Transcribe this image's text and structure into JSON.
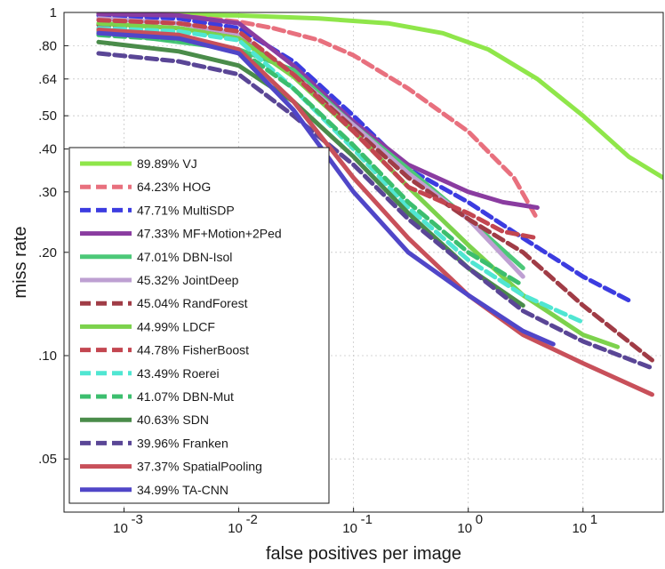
{
  "chart_data": {
    "type": "line",
    "title": "",
    "xlabel": "false positives per image",
    "ylabel": "miss rate",
    "xscale": "log",
    "yscale": "log",
    "xlim": [
      0.0003,
      50
    ],
    "ylim": [
      0.035,
      1
    ],
    "grid": true,
    "legend_position": "bottom-left",
    "x_ticks": [
      {
        "value": 0.001,
        "base": "10",
        "exp": "-3"
      },
      {
        "value": 0.01,
        "base": "10",
        "exp": "-2"
      },
      {
        "value": 0.1,
        "base": "10",
        "exp": "-1"
      },
      {
        "value": 1,
        "base": "10",
        "exp": "0"
      },
      {
        "value": 10,
        "base": "10",
        "exp": "1"
      }
    ],
    "y_ticks": [
      {
        "value": 1,
        "label": "1"
      },
      {
        "value": 0.8,
        "label": ".80"
      },
      {
        "value": 0.64,
        "label": ".64"
      },
      {
        "value": 0.5,
        "label": ".50"
      },
      {
        "value": 0.4,
        "label": ".40"
      },
      {
        "value": 0.3,
        "label": ".30"
      },
      {
        "value": 0.2,
        "label": ".20"
      },
      {
        "value": 0.1,
        "label": ".10"
      },
      {
        "value": 0.05,
        "label": ".05"
      }
    ],
    "series": [
      {
        "name": "89.89% VJ",
        "color": "#8fe64a",
        "dashed": false,
        "x": [
          0.0006,
          0.01,
          0.05,
          0.2,
          0.6,
          1.5,
          4,
          10,
          25,
          50
        ],
        "y": [
          0.99,
          0.98,
          0.96,
          0.93,
          0.87,
          0.78,
          0.64,
          0.5,
          0.38,
          0.33
        ]
      },
      {
        "name": "64.23% HOG",
        "color": "#e8707e",
        "dashed": true,
        "x": [
          0.0006,
          0.003,
          0.01,
          0.02,
          0.05,
          0.1,
          0.3,
          1,
          2.5,
          4
        ],
        "y": [
          0.99,
          0.98,
          0.94,
          0.9,
          0.83,
          0.75,
          0.6,
          0.45,
          0.33,
          0.25
        ]
      },
      {
        "name": "47.71% MultiSDP",
        "color": "#3c3ce0",
        "dashed": true,
        "x": [
          0.0006,
          0.003,
          0.01,
          0.03,
          0.1,
          0.3,
          1,
          3,
          10,
          25
        ],
        "y": [
          0.98,
          0.96,
          0.9,
          0.72,
          0.5,
          0.35,
          0.28,
          0.22,
          0.17,
          0.145
        ]
      },
      {
        "name": "47.33% MF+Motion+2Ped",
        "color": "#8a3ca0",
        "dashed": false,
        "x": [
          0.0006,
          0.003,
          0.01,
          0.03,
          0.1,
          0.3,
          1,
          2,
          4
        ],
        "y": [
          0.99,
          0.98,
          0.93,
          0.7,
          0.48,
          0.36,
          0.3,
          0.28,
          0.27
        ]
      },
      {
        "name": "47.01% DBN-Isol",
        "color": "#4cc878",
        "dashed": false,
        "x": [
          0.0006,
          0.003,
          0.01,
          0.03,
          0.1,
          0.3,
          1,
          3
        ],
        "y": [
          0.88,
          0.82,
          0.78,
          0.68,
          0.47,
          0.35,
          0.25,
          0.18
        ]
      },
      {
        "name": "45.32% JointDeep",
        "color": "#bea0d2",
        "dashed": false,
        "x": [
          0.0006,
          0.003,
          0.01,
          0.03,
          0.1,
          0.3,
          1,
          3
        ],
        "y": [
          0.96,
          0.93,
          0.86,
          0.66,
          0.47,
          0.34,
          0.25,
          0.17
        ]
      },
      {
        "name": "45.04% RandForest",
        "color": "#a03c46",
        "dashed": true,
        "x": [
          0.0006,
          0.003,
          0.01,
          0.03,
          0.1,
          0.3,
          1,
          3,
          10,
          40
        ],
        "y": [
          0.92,
          0.9,
          0.84,
          0.66,
          0.46,
          0.33,
          0.25,
          0.2,
          0.14,
          0.097
        ]
      },
      {
        "name": "44.99% LDCF",
        "color": "#7cd24c",
        "dashed": false,
        "x": [
          0.0006,
          0.003,
          0.01,
          0.03,
          0.1,
          0.3,
          1,
          3,
          10,
          20
        ],
        "y": [
          0.93,
          0.9,
          0.84,
          0.65,
          0.45,
          0.31,
          0.21,
          0.15,
          0.115,
          0.106
        ]
      },
      {
        "name": "44.78% FisherBoost",
        "color": "#c34650",
        "dashed": true,
        "x": [
          0.0006,
          0.003,
          0.01,
          0.03,
          0.1,
          0.3,
          1,
          2,
          4
        ],
        "y": [
          0.95,
          0.93,
          0.88,
          0.66,
          0.45,
          0.31,
          0.26,
          0.23,
          0.22
        ]
      },
      {
        "name": "43.49% Roerei",
        "color": "#50e6d2",
        "dashed": true,
        "x": [
          0.0006,
          0.003,
          0.01,
          0.03,
          0.1,
          0.3,
          1,
          3,
          10
        ],
        "y": [
          0.9,
          0.88,
          0.83,
          0.6,
          0.4,
          0.27,
          0.19,
          0.15,
          0.125
        ]
      },
      {
        "name": "41.07% DBN-Mut",
        "color": "#3cbe6e",
        "dashed": true,
        "x": [
          0.0006,
          0.003,
          0.01,
          0.03,
          0.1,
          0.3,
          1,
          3
        ],
        "y": [
          0.86,
          0.83,
          0.78,
          0.6,
          0.41,
          0.28,
          0.2,
          0.16
        ]
      },
      {
        "name": "40.63% SDN",
        "color": "#4a8c4a",
        "dashed": false,
        "x": [
          0.0006,
          0.003,
          0.01,
          0.03,
          0.1,
          0.3,
          1,
          3
        ],
        "y": [
          0.82,
          0.77,
          0.7,
          0.55,
          0.38,
          0.26,
          0.18,
          0.14
        ]
      },
      {
        "name": "39.96% Franken",
        "color": "#5a4696",
        "dashed": true,
        "x": [
          0.0006,
          0.003,
          0.01,
          0.03,
          0.1,
          0.3,
          1,
          3,
          10,
          40
        ],
        "y": [
          0.76,
          0.72,
          0.66,
          0.5,
          0.36,
          0.25,
          0.18,
          0.135,
          0.11,
          0.092
        ]
      },
      {
        "name": "37.37% SpatialPooling",
        "color": "#c8505a",
        "dashed": false,
        "x": [
          0.0006,
          0.003,
          0.01,
          0.03,
          0.1,
          0.3,
          1,
          3,
          10,
          40
        ],
        "y": [
          0.89,
          0.86,
          0.78,
          0.55,
          0.33,
          0.22,
          0.15,
          0.115,
          0.095,
          0.077
        ]
      },
      {
        "name": "34.99% TA-CNN",
        "color": "#5046c8",
        "dashed": false,
        "x": [
          0.0006,
          0.003,
          0.01,
          0.03,
          0.1,
          0.3,
          1,
          3,
          5.5
        ],
        "y": [
          0.87,
          0.84,
          0.76,
          0.52,
          0.3,
          0.2,
          0.15,
          0.118,
          0.108
        ]
      }
    ]
  }
}
